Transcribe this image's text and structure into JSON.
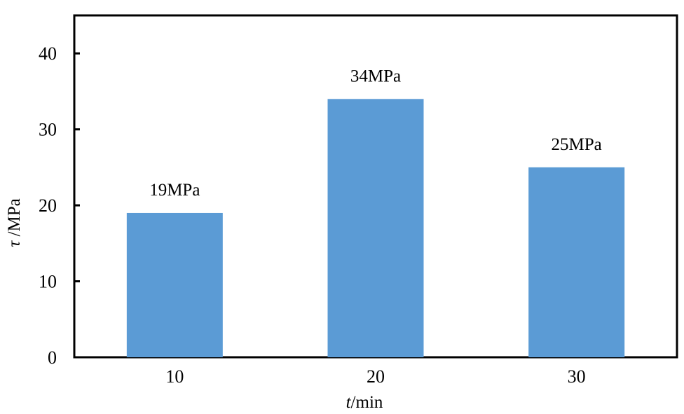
{
  "chart_data": {
    "type": "bar",
    "categories": [
      "10",
      "20",
      "30"
    ],
    "values": [
      19,
      34,
      25
    ],
    "data_labels": [
      "19MPa",
      "34MPa",
      "25MPa"
    ],
    "xlabel_var": "t",
    "xlabel_unit": "/min",
    "ylabel_var": "τ",
    "ylabel_unit": " /MPa",
    "ylim": [
      0,
      45
    ],
    "yticks": [
      0,
      10,
      20,
      30,
      40
    ],
    "grid": false,
    "legend": "none",
    "bar_color": "#5b9bd5"
  }
}
